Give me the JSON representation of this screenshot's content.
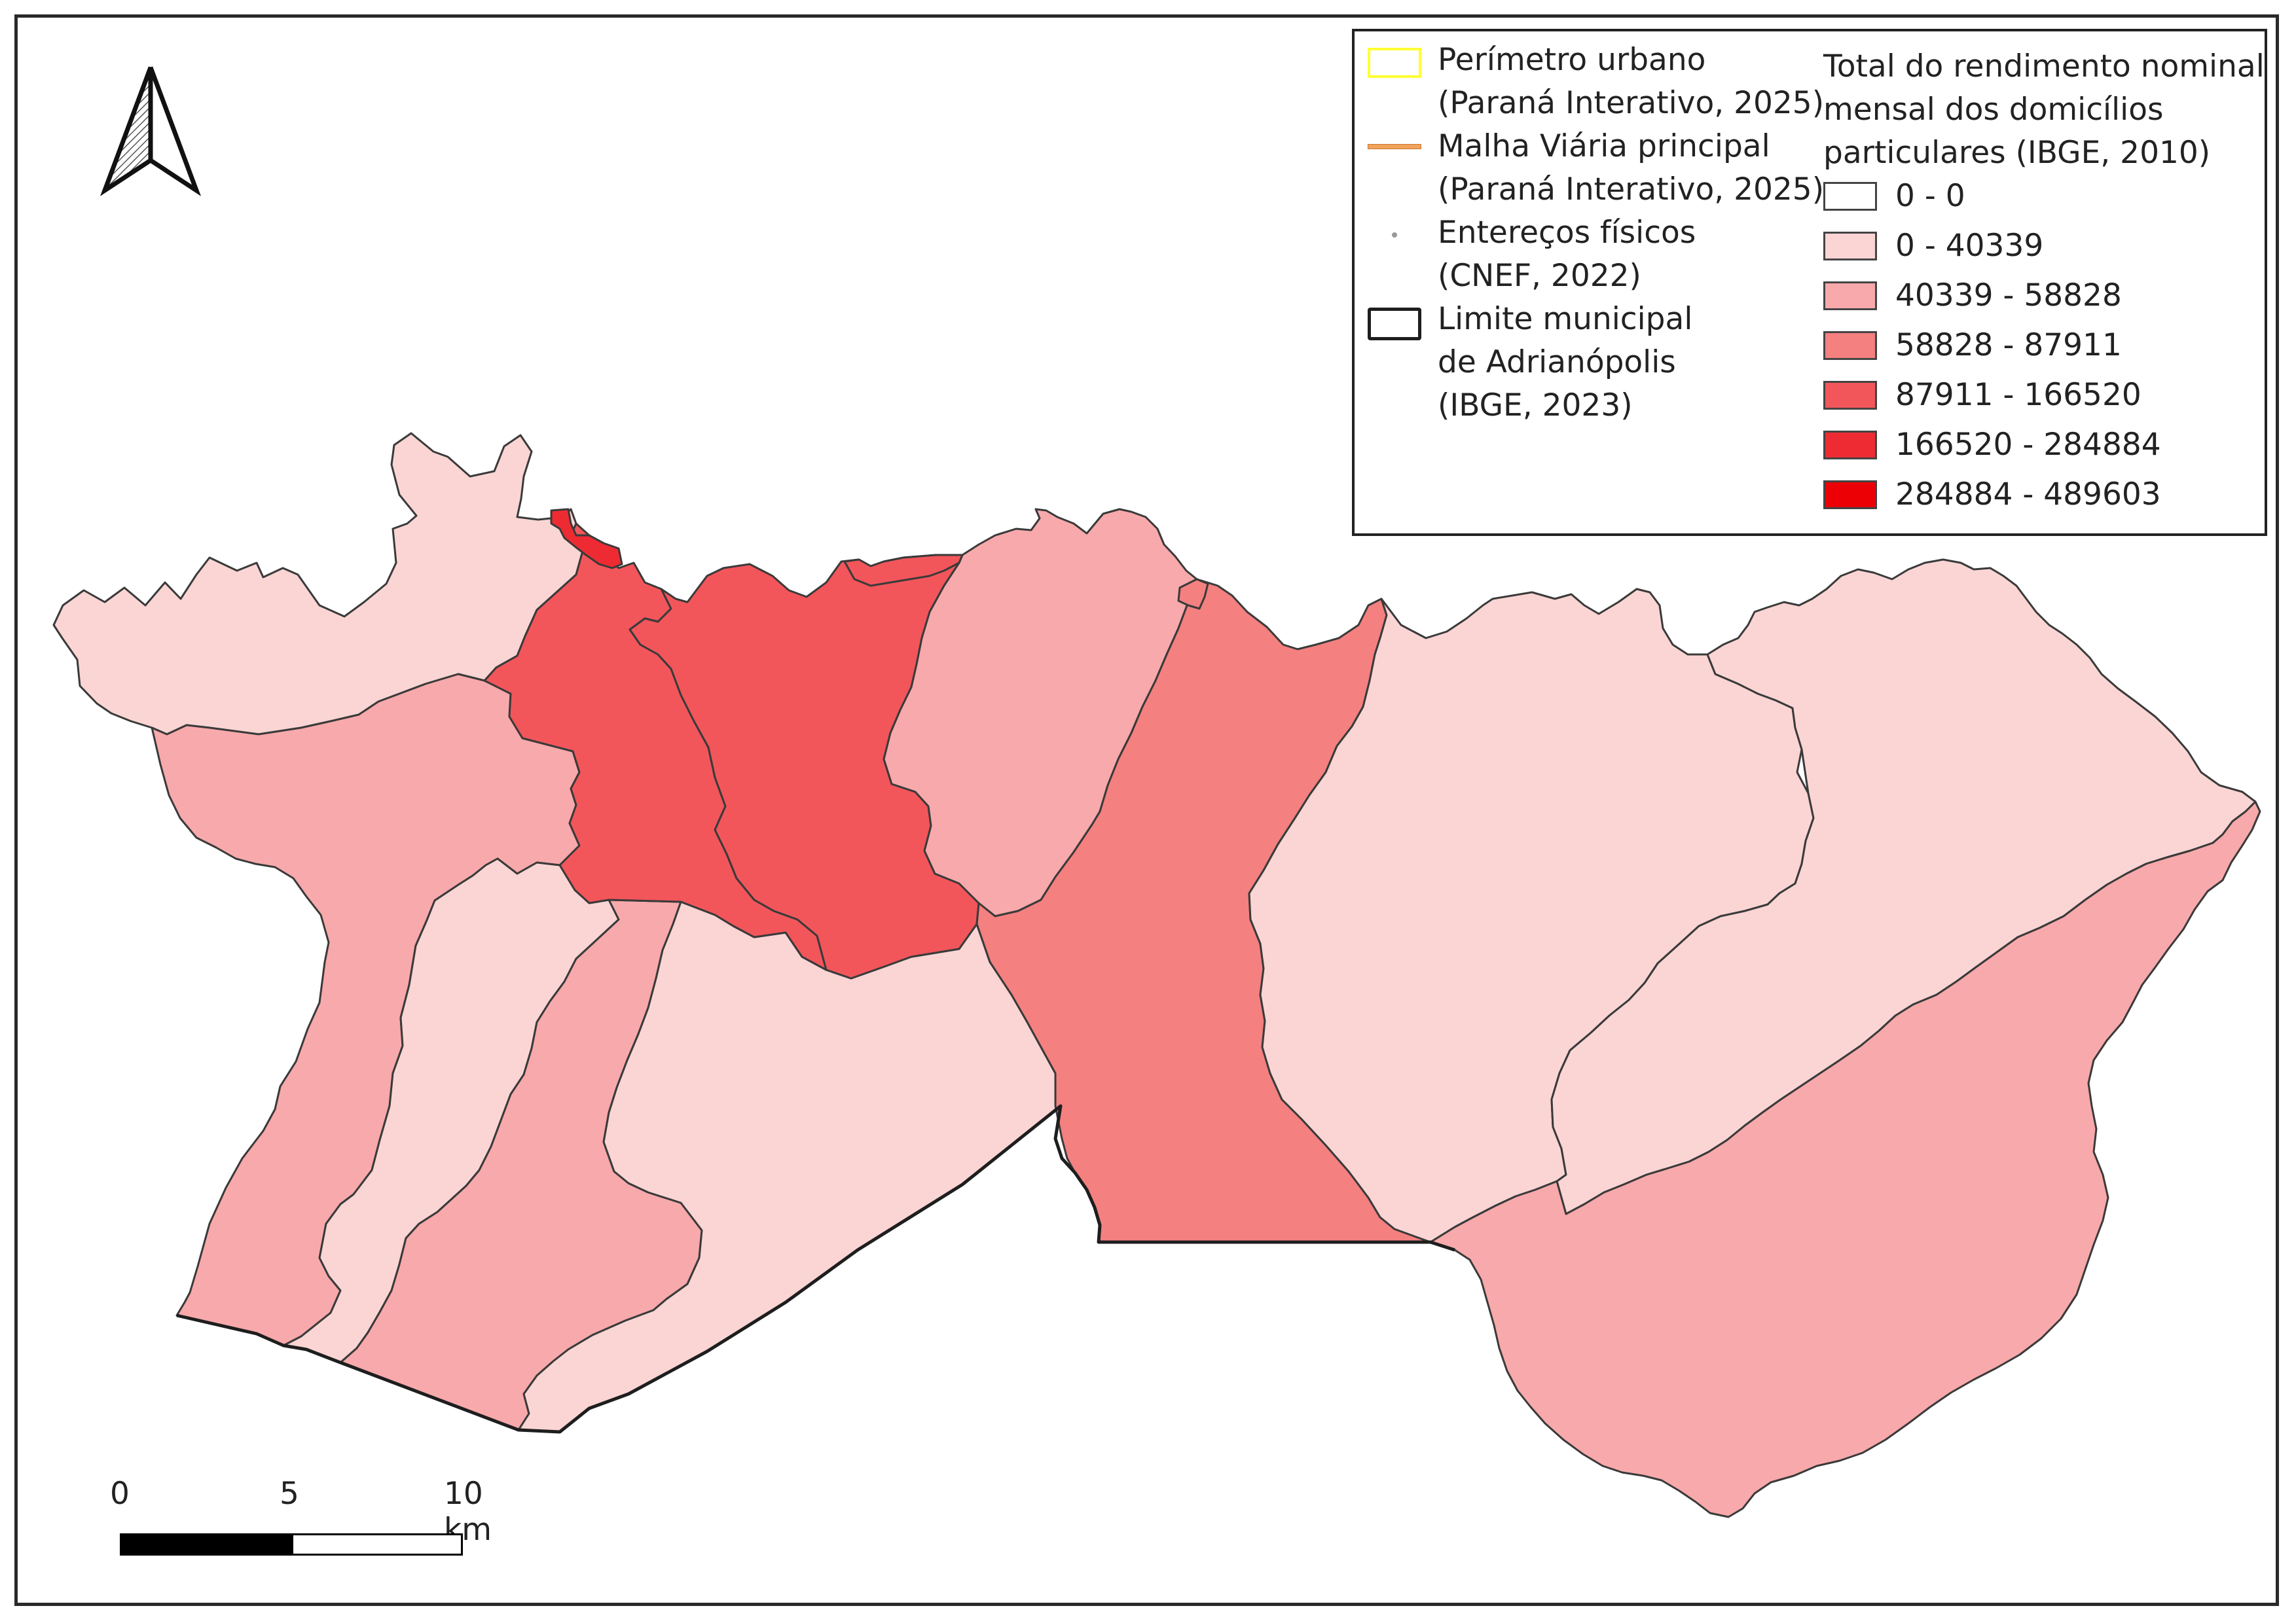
{
  "legend": {
    "layers": [
      {
        "line1": "Perímetro urbano",
        "line2": "(Paraná Interativo, 2025)",
        "swatch_color": "#ffff33",
        "icon": "yellow-outline-rect"
      },
      {
        "line1": "Malha Viária principal",
        "line2": "(Paraná Interativo, 2025)",
        "swatch_color": "#f2a25a",
        "icon": "orange-line"
      },
      {
        "line1": "Entereços físicos",
        "line2": "(CNEF, 2022)",
        "swatch_color": "#9a9a9a",
        "icon": "grey-dot"
      },
      {
        "line1": "Limite municipal",
        "line2": "de Adrianópolis",
        "line3": "(IBGE, 2023)",
        "swatch_color": "#1e1e1e",
        "icon": "black-outline-rect"
      }
    ],
    "choropleth_title_1": "Total do rendimento nominal",
    "choropleth_title_2": "mensal dos domicílios",
    "choropleth_title_3": "particulares (IBGE, 2010)",
    "classes": [
      {
        "label": "0 - 0",
        "color": "#ffffff"
      },
      {
        "label": "0 - 40339",
        "color": "#fad5d4"
      },
      {
        "label": "40339 - 58828",
        "color": "#f8a9ab"
      },
      {
        "label": "58828 - 87911",
        "color": "#f48080"
      },
      {
        "label": "87911 - 166520",
        "color": "#f2565b"
      },
      {
        "label": "166520 - 284884",
        "color": "#ee2b33"
      },
      {
        "label": "284884 - 489603",
        "color": "#ec0006"
      }
    ]
  },
  "scale_bar": {
    "labels": [
      "0",
      "5",
      "10 km"
    ]
  },
  "north_arrow": {
    "icon": "north-arrow-icon"
  },
  "regions": [
    {
      "name": "northwest",
      "class_index": 1
    },
    {
      "name": "west-central",
      "class_index": 2
    },
    {
      "name": "southwest-strip-a",
      "class_index": 1
    },
    {
      "name": "southwest-strip-b",
      "class_index": 2
    },
    {
      "name": "south-central",
      "class_index": 1
    },
    {
      "name": "north-central-west",
      "class_index": 4
    },
    {
      "name": "north-central-east",
      "class_index": 4
    },
    {
      "name": "north-central-right",
      "class_index": 2
    },
    {
      "name": "central-south",
      "class_index": 3
    },
    {
      "name": "east-north",
      "class_index": 1
    },
    {
      "name": "east-upper",
      "class_index": 1
    },
    {
      "name": "southeast",
      "class_index": 2
    },
    {
      "name": "urban-north-sliver",
      "class_index": 5
    },
    {
      "name": "urban-north-small",
      "class_index": 4
    },
    {
      "name": "urban-north-tiny",
      "class_index": 3
    }
  ]
}
